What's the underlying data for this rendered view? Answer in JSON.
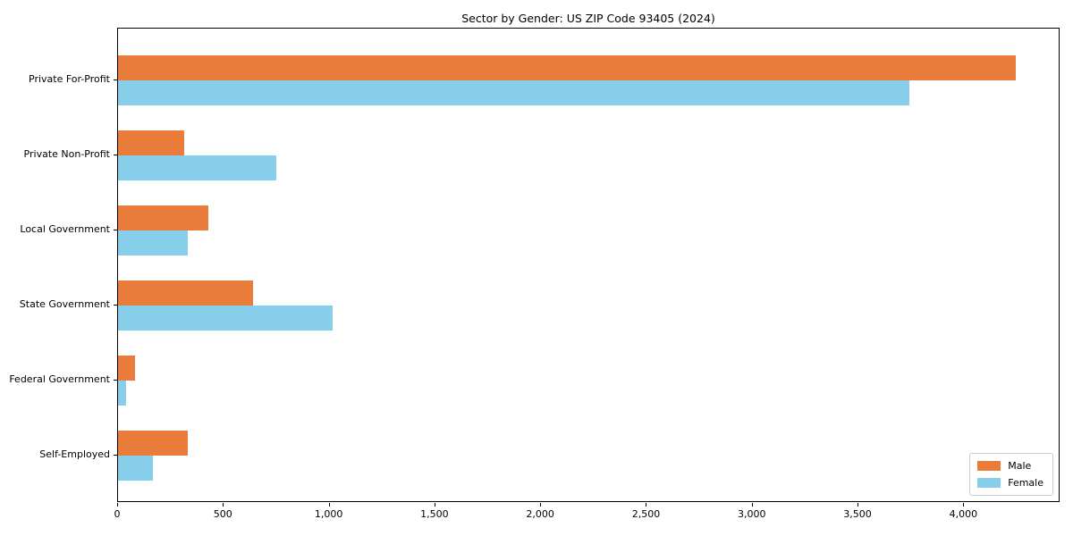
{
  "chart_data": {
    "type": "bar",
    "orientation": "horizontal",
    "title": "Sector by Gender: US ZIP Code 93405 (2024)",
    "categories": [
      "Private For-Profit",
      "Private Non-Profit",
      "Local Government",
      "State Government",
      "Federal Government",
      "Self-Employed"
    ],
    "series": [
      {
        "name": "Male",
        "color": "#E97C3B",
        "values": [
          4245,
          313,
          427,
          638,
          80,
          330
        ]
      },
      {
        "name": "Female",
        "color": "#87CEEB",
        "values": [
          3740,
          748,
          330,
          1014,
          38,
          165
        ]
      }
    ],
    "xlabel": "",
    "ylabel": "",
    "xlim": [
      0,
      4455
    ],
    "xticks": [
      0,
      500,
      1000,
      1500,
      2000,
      2500,
      3000,
      3500,
      4000
    ],
    "xtick_labels": [
      "0",
      "500",
      "1,000",
      "1,500",
      "2,000",
      "2,500",
      "3,000",
      "3,500",
      "4,000"
    ],
    "grid": false,
    "legend_position": "lower right"
  },
  "colors": {
    "male": "#E97C3B",
    "female": "#87CEEB",
    "axis": "#000000",
    "background": "#FFFFFF",
    "legend_border": "#CCCCCC"
  }
}
